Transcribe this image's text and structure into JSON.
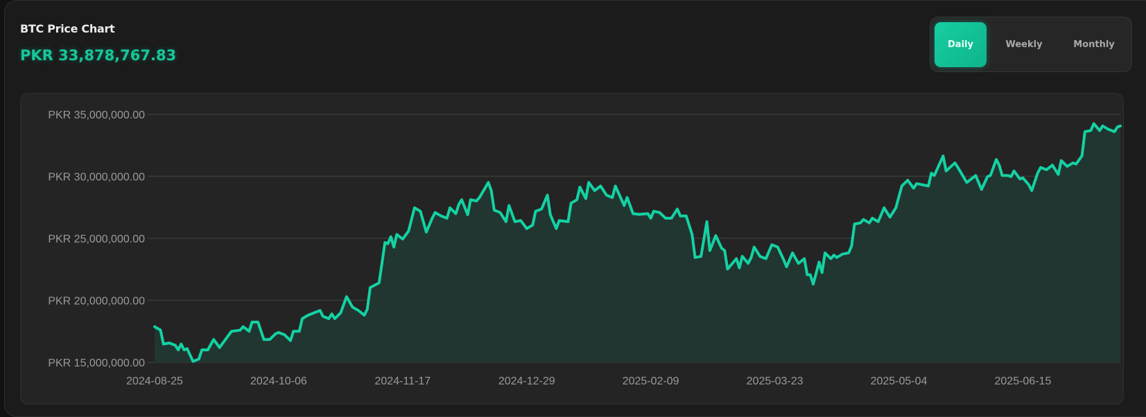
{
  "header": {
    "title": "BTC Price Chart",
    "current_price": "PKR 33,878,767.83"
  },
  "range_toggle": {
    "options": [
      "Daily",
      "Weekly",
      "Monthly"
    ],
    "selected": "Daily"
  },
  "colors": {
    "accent": "#16c79a",
    "line": "#14d1a3",
    "fill": "#213630",
    "background": "#1b1b1b",
    "panel": "#242424"
  },
  "chart_data": {
    "type": "area",
    "title": "",
    "xlabel": "",
    "ylabel": "",
    "ylim": [
      15000000,
      35000000
    ],
    "grid": true,
    "y_ticks": [
      15000000,
      20000000,
      25000000,
      30000000,
      35000000
    ],
    "y_tick_labels": [
      "PKR 15,000,000.00",
      "PKR 20,000,000.00",
      "PKR 25,000,000.00",
      "PKR 30,000,000.00",
      "PKR 35,000,000.00"
    ],
    "x_ticks": [
      "2024-08-25",
      "2024-10-06",
      "2024-11-17",
      "2024-12-29",
      "2025-02-09",
      "2025-03-23",
      "2025-05-04",
      "2025-06-15"
    ],
    "xlim": [
      "2024-08-25",
      "2025-07-18"
    ],
    "series": [
      {
        "x": [
          "2024-08-25",
          "2024-08-27",
          "2024-08-28",
          "2024-08-30",
          "2024-09-01",
          "2024-09-02",
          "2024-09-03",
          "2024-09-04",
          "2024-09-05",
          "2024-09-07",
          "2024-09-09",
          "2024-09-10",
          "2024-09-12",
          "2024-09-14",
          "2024-09-16",
          "2024-09-20",
          "2024-09-23",
          "2024-09-24",
          "2024-09-26",
          "2024-09-27",
          "2024-09-29",
          "2024-10-01",
          "2024-10-03",
          "2024-10-05",
          "2024-10-06",
          "2024-10-08",
          "2024-10-10",
          "2024-10-11",
          "2024-10-13",
          "2024-10-14",
          "2024-10-16",
          "2024-10-18",
          "2024-10-20",
          "2024-10-21",
          "2024-10-23",
          "2024-10-24",
          "2024-10-25",
          "2024-10-27",
          "2024-10-29",
          "2024-10-31",
          "2024-11-02",
          "2024-11-04",
          "2024-11-05",
          "2024-11-06",
          "2024-11-09",
          "2024-11-11",
          "2024-11-12",
          "2024-11-13",
          "2024-11-14",
          "2024-11-15",
          "2024-11-17",
          "2024-11-19",
          "2024-11-21",
          "2024-11-23",
          "2024-11-25",
          "2024-11-27",
          "2024-11-28",
          "2024-11-30",
          "2024-12-02",
          "2024-12-03",
          "2024-12-05",
          "2024-12-06",
          "2024-12-07",
          "2024-12-09",
          "2024-12-10",
          "2024-12-12",
          "2024-12-13",
          "2024-12-16",
          "2024-12-17",
          "2024-12-18",
          "2024-12-20",
          "2024-12-22",
          "2024-12-23",
          "2024-12-25",
          "2024-12-27",
          "2024-12-29",
          "2024-12-31",
          "2025-01-01",
          "2025-01-03",
          "2025-01-05",
          "2025-01-06",
          "2025-01-08",
          "2025-01-09",
          "2025-01-12",
          "2025-01-13",
          "2025-01-15",
          "2025-01-16",
          "2025-01-18",
          "2025-01-19",
          "2025-01-21",
          "2025-01-23",
          "2025-01-25",
          "2025-01-27",
          "2025-01-28",
          "2025-01-31",
          "2025-02-01",
          "2025-02-03",
          "2025-02-05",
          "2025-02-08",
          "2025-02-09",
          "2025-02-10",
          "2025-02-12",
          "2025-02-14",
          "2025-02-16",
          "2025-02-18",
          "2025-02-19",
          "2025-02-21",
          "2025-02-23",
          "2025-02-24",
          "2025-02-26",
          "2025-02-28",
          "2025-03-01",
          "2025-03-03",
          "2025-03-05",
          "2025-03-06",
          "2025-03-07",
          "2025-03-10",
          "2025-03-11",
          "2025-03-12",
          "2025-03-14",
          "2025-03-15",
          "2025-03-16",
          "2025-03-18",
          "2025-03-20",
          "2025-03-22",
          "2025-03-24",
          "2025-03-26",
          "2025-03-27",
          "2025-03-29",
          "2025-03-31",
          "2025-04-02",
          "2025-04-03",
          "2025-04-04",
          "2025-04-05",
          "2025-04-07",
          "2025-04-08",
          "2025-04-09",
          "2025-04-11",
          "2025-04-12",
          "2025-04-13",
          "2025-04-15",
          "2025-04-17",
          "2025-04-18",
          "2025-04-19",
          "2025-04-21",
          "2025-04-22",
          "2025-04-24",
          "2025-04-25",
          "2025-04-27",
          "2025-04-29",
          "2025-05-01",
          "2025-05-03",
          "2025-05-05",
          "2025-05-07",
          "2025-05-09",
          "2025-05-10",
          "2025-05-14",
          "2025-05-15",
          "2025-05-16",
          "2025-05-19",
          "2025-05-20",
          "2025-05-23",
          "2025-05-24",
          "2025-05-27",
          "2025-05-30",
          "2025-06-01",
          "2025-06-03",
          "2025-06-04",
          "2025-06-06",
          "2025-06-07",
          "2025-06-08",
          "2025-06-10",
          "2025-06-11",
          "2025-06-12",
          "2025-06-14",
          "2025-06-15",
          "2025-06-17",
          "2025-06-18",
          "2025-06-20",
          "2025-06-21",
          "2025-06-23",
          "2025-06-25",
          "2025-06-27",
          "2025-06-28",
          "2025-06-30",
          "2025-07-02",
          "2025-07-03",
          "2025-07-05",
          "2025-07-06",
          "2025-07-08",
          "2025-07-09",
          "2025-07-11",
          "2025-07-12",
          "2025-07-14",
          "2025-07-16",
          "2025-07-17",
          "2025-07-18"
        ],
        "y": [
          17870000,
          17590000,
          16470000,
          16560000,
          16370000,
          16000000,
          16470000,
          16000000,
          16100000,
          15070000,
          15260000,
          16000000,
          16000000,
          16840000,
          16190000,
          17500000,
          17590000,
          17870000,
          17500000,
          18240000,
          18240000,
          16840000,
          16840000,
          17310000,
          17400000,
          17220000,
          16750000,
          17500000,
          17500000,
          18520000,
          18800000,
          18990000,
          19180000,
          18710000,
          18520000,
          18900000,
          18520000,
          18990000,
          20290000,
          19450000,
          19180000,
          18800000,
          19270000,
          21030000,
          21400000,
          24660000,
          24570000,
          25130000,
          24290000,
          25310000,
          24940000,
          25590000,
          27460000,
          27180000,
          25500000,
          26620000,
          27080000,
          26800000,
          26620000,
          27460000,
          26990000,
          27730000,
          28110000,
          26900000,
          28110000,
          28010000,
          28290000,
          29500000,
          28850000,
          27270000,
          27080000,
          26340000,
          27640000,
          26340000,
          26430000,
          25780000,
          26060000,
          27180000,
          27360000,
          28480000,
          26900000,
          25780000,
          26430000,
          26340000,
          27830000,
          28110000,
          29130000,
          28200000,
          29500000,
          28850000,
          29220000,
          28480000,
          28290000,
          29220000,
          27640000,
          28290000,
          26990000,
          26930000,
          26990000,
          26620000,
          27180000,
          27080000,
          26620000,
          26620000,
          27360000,
          26800000,
          26800000,
          25310000,
          23450000,
          23540000,
          26340000,
          24010000,
          25220000,
          24200000,
          24010000,
          22520000,
          23360000,
          22610000,
          23540000,
          22980000,
          23450000,
          24290000,
          23540000,
          23360000,
          24480000,
          24290000,
          23270000,
          22700000,
          23820000,
          22980000,
          23360000,
          22060000,
          22060000,
          21310000,
          23080000,
          22240000,
          23820000,
          23360000,
          23640000,
          23450000,
          23730000,
          23820000,
          24380000,
          26150000,
          26240000,
          26520000,
          26240000,
          26620000,
          26340000,
          27460000,
          26710000,
          27460000,
          29220000,
          29680000,
          29040000,
          29410000,
          29220000,
          30250000,
          30060000,
          31640000,
          30430000,
          31080000,
          30710000,
          29500000,
          30060000,
          28940000,
          29970000,
          30060000,
          31360000,
          30900000,
          30060000,
          30060000,
          29970000,
          30430000,
          29780000,
          29870000,
          29320000,
          28850000,
          30250000,
          30710000,
          30530000,
          30900000,
          30150000,
          31270000,
          30800000,
          31080000,
          30990000,
          31640000,
          33600000,
          33690000,
          34250000,
          33690000,
          34060000,
          33780000,
          33600000,
          33970000,
          34060000
        ]
      }
    ]
  }
}
